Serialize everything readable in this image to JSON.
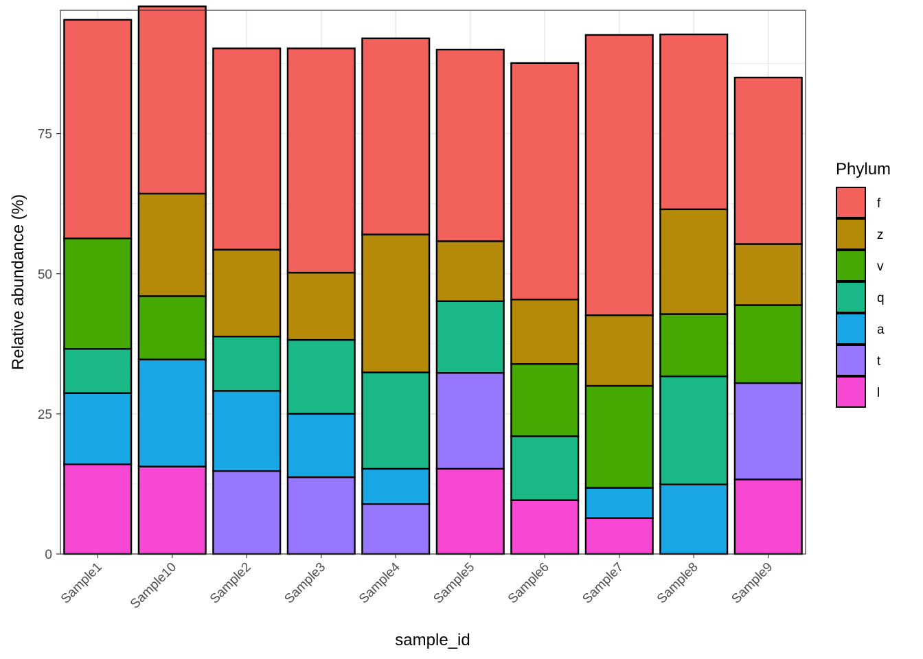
{
  "chart_data": {
    "type": "bar",
    "stacked": true,
    "title": "",
    "xlabel": "sample_id",
    "ylabel": "Relative abundance (%)",
    "ylim": [
      0,
      97
    ],
    "yticks": [
      0,
      25,
      50,
      75
    ],
    "grid": true,
    "legend_position": "right",
    "legend_title": "Phylum",
    "categories": [
      "Sample1",
      "Sample10",
      "Sample2",
      "Sample3",
      "Sample4",
      "Sample5",
      "Sample6",
      "Sample7",
      "Sample8",
      "Sample9"
    ],
    "series": [
      {
        "name": "l",
        "color": "#F748D4",
        "values": [
          16.0,
          15.6,
          0.0,
          0.0,
          0.0,
          15.2,
          9.6,
          6.4,
          0.0,
          13.3
        ]
      },
      {
        "name": "t",
        "color": "#9877FF",
        "values": [
          0.0,
          0.0,
          14.8,
          13.7,
          8.9,
          17.1,
          0.0,
          0.0,
          0.0,
          17.2
        ]
      },
      {
        "name": "a",
        "color": "#18A7E4",
        "values": [
          12.7,
          19.1,
          14.3,
          11.3,
          6.3,
          0.0,
          0.0,
          5.4,
          12.4,
          0.0
        ]
      },
      {
        "name": "q",
        "color": "#19B886",
        "values": [
          7.9,
          0.0,
          9.7,
          13.2,
          17.2,
          12.8,
          11.4,
          0.0,
          19.3,
          0.0
        ]
      },
      {
        "name": "v",
        "color": "#46A902",
        "values": [
          19.7,
          11.3,
          0.0,
          0.0,
          0.0,
          0.0,
          12.9,
          18.2,
          11.1,
          13.9
        ]
      },
      {
        "name": "z",
        "color": "#B48A08",
        "values": [
          0.0,
          18.3,
          15.5,
          12.0,
          24.6,
          10.7,
          11.5,
          12.6,
          18.7,
          10.9
        ]
      },
      {
        "name": "f",
        "color": "#F3615D",
        "values": [
          39.0,
          33.4,
          35.9,
          40.0,
          35.0,
          34.2,
          42.2,
          50.0,
          31.2,
          29.7
        ]
      }
    ]
  }
}
